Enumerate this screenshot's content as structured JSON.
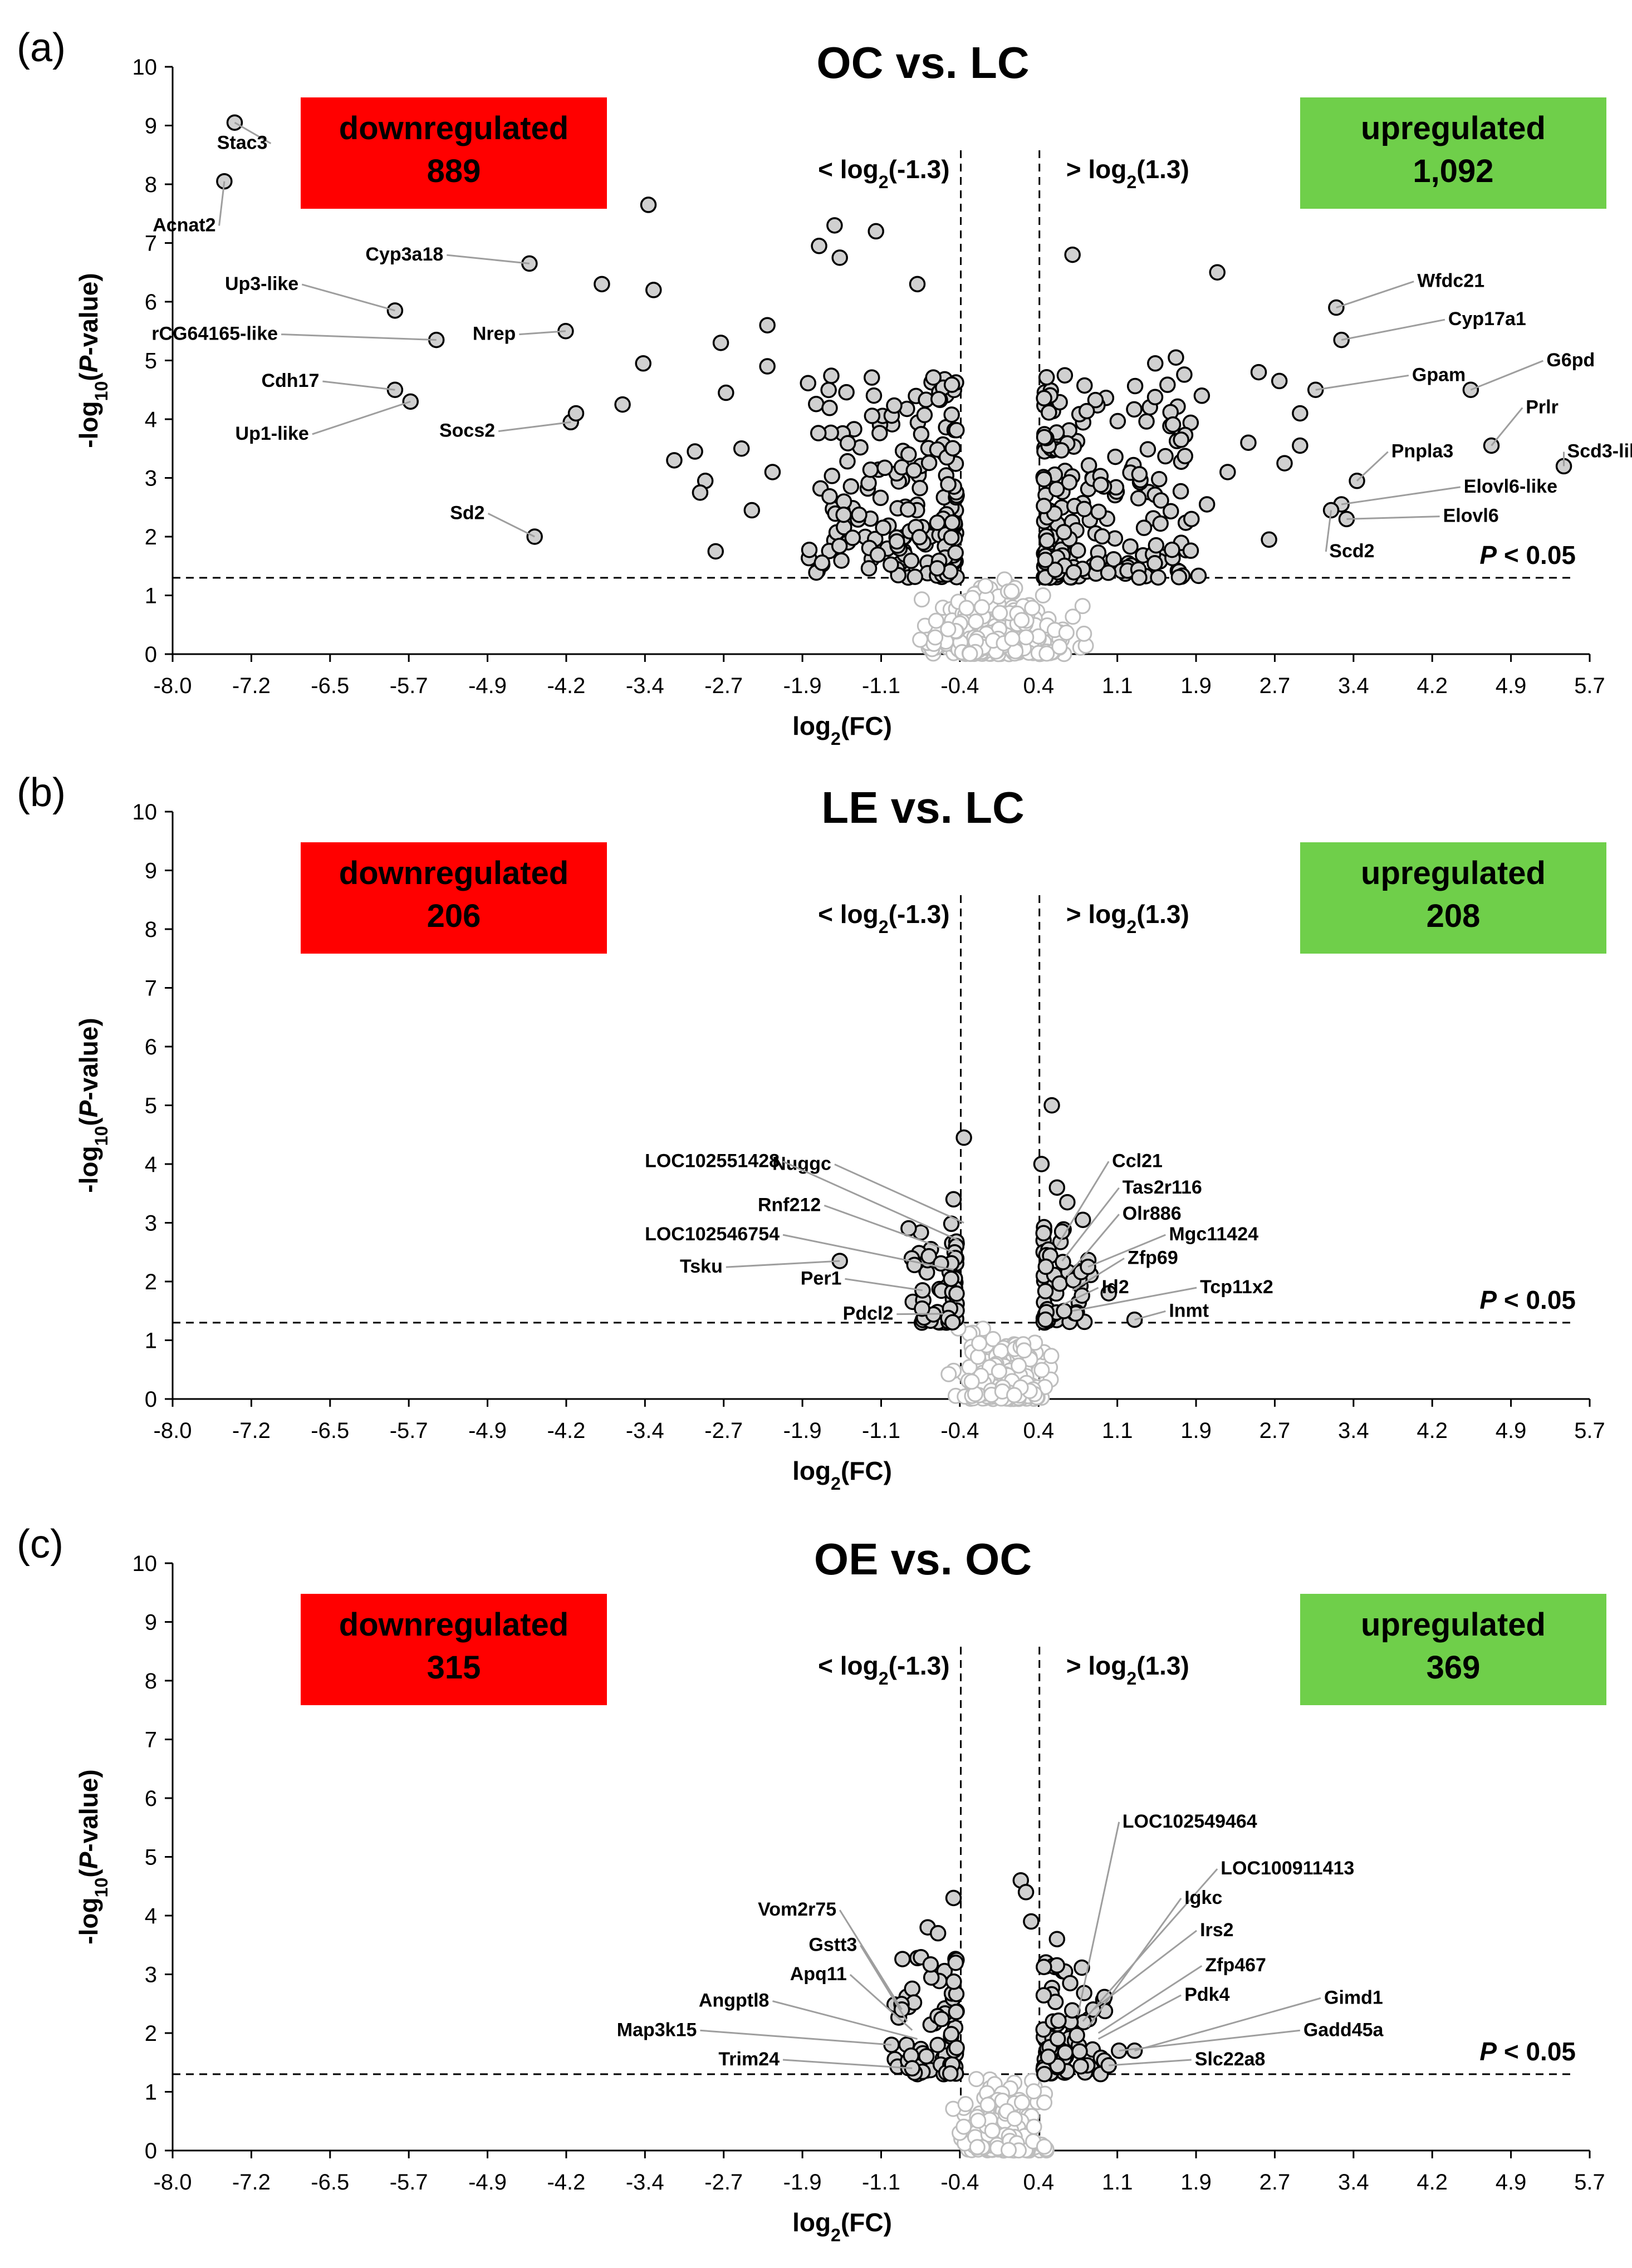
{
  "chart_data": [
    {
      "type": "scatter",
      "panel": "(a)",
      "title": "OC vs. LC",
      "xlabel": "log2(FC)",
      "ylabel": "-log10(P-value)",
      "xlim": [
        -8.0,
        5.7
      ],
      "ylim": [
        0,
        10
      ],
      "xticks": [
        "-8.0",
        "-7.2",
        "-6.5",
        "-5.7",
        "-4.9",
        "-4.2",
        "-3.4",
        "-2.7",
        "-1.9",
        "-1.1",
        "-0.4",
        "0.4",
        "1.1",
        "1.9",
        "2.7",
        "3.4",
        "4.2",
        "4.9",
        "5.7"
      ],
      "yticks": [
        "0",
        "1",
        "2",
        "3",
        "4",
        "5",
        "6",
        "7",
        "8",
        "9",
        "10"
      ],
      "fc_threshold": [
        -0.38,
        0.38
      ],
      "fc_left_label": "< log2(-1.3)",
      "fc_right_label": "> log2(1.3)",
      "p_threshold": 1.3,
      "p_label": "P < 0.05",
      "down": {
        "label": "downregulated",
        "count": "889",
        "color": "#ff0000"
      },
      "up": {
        "label": "upregulated",
        "count": "1,092",
        "color": "#6fcf4a"
      },
      "cluster": {
        "xspread": 1.5,
        "sig_ymax": 4.8,
        "nsig": 380,
        "nnonsig": 340,
        "seed": 11
      },
      "points": [
        {
          "x": -7.4,
          "y": 9.05
        },
        {
          "x": -7.5,
          "y": 8.05
        },
        {
          "x": -5.85,
          "y": 5.85
        },
        {
          "x": -5.45,
          "y": 5.35
        },
        {
          "x": -5.85,
          "y": 4.5
        },
        {
          "x": -5.7,
          "y": 4.3
        },
        {
          "x": -4.55,
          "y": 6.65
        },
        {
          "x": -4.2,
          "y": 5.5
        },
        {
          "x": -4.15,
          "y": 3.95
        },
        {
          "x": -4.5,
          "y": 2.0
        },
        {
          "x": -3.4,
          "y": 7.65
        },
        {
          "x": -3.35,
          "y": 6.2
        },
        {
          "x": -3.85,
          "y": 6.3
        },
        {
          "x": -3.45,
          "y": 4.95
        },
        {
          "x": -3.65,
          "y": 4.25
        },
        {
          "x": -4.1,
          "y": 4.1
        },
        {
          "x": -3.15,
          "y": 3.3
        },
        {
          "x": -2.95,
          "y": 3.45
        },
        {
          "x": -2.85,
          "y": 2.95
        },
        {
          "x": -2.5,
          "y": 3.5
        },
        {
          "x": -2.65,
          "y": 4.45
        },
        {
          "x": -2.7,
          "y": 5.3
        },
        {
          "x": -2.25,
          "y": 4.9
        },
        {
          "x": -2.25,
          "y": 5.6
        },
        {
          "x": -2.2,
          "y": 3.1
        },
        {
          "x": -2.9,
          "y": 2.75
        },
        {
          "x": -2.75,
          "y": 1.75
        },
        {
          "x": -2.4,
          "y": 2.45
        },
        {
          "x": -1.75,
          "y": 6.95
        },
        {
          "x": -1.6,
          "y": 7.3
        },
        {
          "x": -1.55,
          "y": 6.75
        },
        {
          "x": -1.2,
          "y": 7.2
        },
        {
          "x": -0.8,
          "y": 6.3
        },
        {
          "x": 0.7,
          "y": 6.8
        },
        {
          "x": 2.1,
          "y": 6.5
        },
        {
          "x": 3.25,
          "y": 5.9
        },
        {
          "x": 3.3,
          "y": 5.35
        },
        {
          "x": 4.55,
          "y": 4.5
        },
        {
          "x": 3.05,
          "y": 4.5
        },
        {
          "x": 4.75,
          "y": 3.55
        },
        {
          "x": 5.45,
          "y": 3.2
        },
        {
          "x": 3.45,
          "y": 2.95
        },
        {
          "x": 3.3,
          "y": 2.55
        },
        {
          "x": 3.2,
          "y": 2.45
        },
        {
          "x": 3.35,
          "y": 2.3
        },
        {
          "x": 2.5,
          "y": 4.8
        },
        {
          "x": 2.7,
          "y": 4.65
        },
        {
          "x": 2.9,
          "y": 4.1
        },
        {
          "x": 2.4,
          "y": 3.6
        },
        {
          "x": 2.75,
          "y": 3.25
        },
        {
          "x": 2.9,
          "y": 3.55
        },
        {
          "x": 1.75,
          "y": 3.65
        },
        {
          "x": 1.95,
          "y": 4.4
        },
        {
          "x": 2.2,
          "y": 3.1
        },
        {
          "x": 2.6,
          "y": 1.95
        },
        {
          "x": 2.0,
          "y": 2.55
        },
        {
          "x": 1.85,
          "y": 2.3
        },
        {
          "x": 1.7,
          "y": 5.05
        },
        {
          "x": 1.5,
          "y": 4.95
        }
      ],
      "labels": [
        {
          "text": "Stac3",
          "x": -7.05,
          "y": 8.6,
          "px": -7.4,
          "py": 9.05
        },
        {
          "text": "Acnat2",
          "x": -7.55,
          "y": 7.2,
          "px": -7.5,
          "py": 8.05
        },
        {
          "text": "Up3-like",
          "x": -6.75,
          "y": 6.2,
          "px": -5.85,
          "py": 5.85
        },
        {
          "text": "rCG64165-like",
          "x": -6.95,
          "y": 5.35,
          "px": -5.45,
          "py": 5.35
        },
        {
          "text": "Cdh17",
          "x": -6.55,
          "y": 4.55,
          "px": -5.85,
          "py": 4.5
        },
        {
          "text": "Up1-like",
          "x": -6.65,
          "y": 3.65,
          "px": -5.7,
          "py": 4.3
        },
        {
          "text": "Cyp3a18",
          "x": -5.35,
          "y": 6.7,
          "px": -4.55,
          "py": 6.65
        },
        {
          "text": "Nrep",
          "x": -4.65,
          "y": 5.35,
          "px": -4.2,
          "py": 5.5
        },
        {
          "text": "Socs2",
          "x": -4.85,
          "y": 3.7,
          "px": -4.15,
          "py": 3.95
        },
        {
          "text": "Sd2",
          "x": -4.95,
          "y": 2.3,
          "px": -4.5,
          "py": 2.0
        },
        {
          "text": "Wfdc21",
          "x": 4.0,
          "y": 6.25,
          "px": 3.25,
          "py": 5.9
        },
        {
          "text": "Cyp17a1",
          "x": 4.3,
          "y": 5.6,
          "px": 3.3,
          "py": 5.35
        },
        {
          "text": "G6pd",
          "x": 5.25,
          "y": 4.9,
          "px": 4.55,
          "py": 4.5
        },
        {
          "text": "Gpam",
          "x": 3.95,
          "y": 4.65,
          "px": 3.05,
          "py": 4.5
        },
        {
          "text": "Prlr",
          "x": 5.05,
          "y": 4.1,
          "px": 4.75,
          "py": 3.55
        },
        {
          "text": "Scd3-like",
          "x": 5.45,
          "y": 3.35,
          "px": 5.45,
          "py": 3.2
        },
        {
          "text": "Pnpla3",
          "x": 3.75,
          "y": 3.35,
          "px": 3.45,
          "py": 2.95
        },
        {
          "text": "Elovl6-like",
          "x": 4.45,
          "y": 2.75,
          "px": 3.3,
          "py": 2.55
        },
        {
          "text": "Elovl6",
          "x": 4.25,
          "y": 2.25,
          "px": 3.35,
          "py": 2.3
        },
        {
          "text": "Scd2",
          "x": 3.15,
          "y": 1.65,
          "px": 3.2,
          "py": 2.45
        }
      ]
    },
    {
      "type": "scatter",
      "panel": "(b)",
      "title": "LE vs. LC",
      "xlabel": "log2(FC)",
      "ylabel": "-log10(P-value)",
      "xlim": [
        -8.0,
        5.7
      ],
      "ylim": [
        0,
        10
      ],
      "xticks": [
        "-8.0",
        "-7.2",
        "-6.5",
        "-5.7",
        "-4.9",
        "-4.2",
        "-3.4",
        "-2.7",
        "-1.9",
        "-1.1",
        "-0.4",
        "0.4",
        "1.1",
        "1.9",
        "2.7",
        "3.4",
        "4.2",
        "4.9",
        "5.7"
      ],
      "yticks": [
        "0",
        "1",
        "2",
        "3",
        "4",
        "5",
        "6",
        "7",
        "8",
        "9",
        "10"
      ],
      "fc_threshold": [
        -0.38,
        0.38
      ],
      "fc_left_label": "< log2(-1.3)",
      "fc_right_label": "> log2(1.3)",
      "p_threshold": 1.3,
      "p_label": "P < 0.05",
      "down": {
        "label": "downregulated",
        "count": "206",
        "color": "#ff0000"
      },
      "up": {
        "label": "upregulated",
        "count": "208",
        "color": "#6fcf4a"
      },
      "cluster": {
        "xspread": 0.5,
        "sig_ymax": 3.0,
        "nsig": 110,
        "nnonsig": 260,
        "seed": 23
      },
      "points": [
        {
          "x": -0.35,
          "y": 4.45
        },
        {
          "x": -0.45,
          "y": 3.4
        },
        {
          "x": -1.55,
          "y": 2.35
        },
        {
          "x": -0.75,
          "y": 1.85
        },
        {
          "x": 0.5,
          "y": 5.0
        },
        {
          "x": 0.4,
          "y": 4.0
        },
        {
          "x": 0.55,
          "y": 3.6
        },
        {
          "x": 0.65,
          "y": 3.35
        },
        {
          "x": 0.8,
          "y": 3.05
        },
        {
          "x": 0.85,
          "y": 2.25
        },
        {
          "x": 0.6,
          "y": 2.85
        },
        {
          "x": 1.3,
          "y": 1.35
        },
        {
          "x": 1.05,
          "y": 1.8
        }
      ],
      "labels": [
        {
          "text": "Nuggc",
          "x": -1.6,
          "y": 3.9,
          "px": -0.35,
          "py": 3.0
        },
        {
          "text": "LOC102551428",
          "x": -2.1,
          "y": 3.95,
          "px": -0.4,
          "py": 2.7
        },
        {
          "text": "Rnf212",
          "x": -1.7,
          "y": 3.2,
          "px": -0.45,
          "py": 2.5
        },
        {
          "text": "LOC102546754",
          "x": -2.1,
          "y": 2.7,
          "px": -0.45,
          "py": 2.2
        },
        {
          "text": "Tsku",
          "x": -2.65,
          "y": 2.15,
          "px": -1.55,
          "py": 2.35
        },
        {
          "text": "Per1",
          "x": -1.5,
          "y": 1.95,
          "px": -0.75,
          "py": 1.85
        },
        {
          "text": "Pdcl2",
          "x": -1.0,
          "y": 1.35,
          "px": -0.55,
          "py": 1.45
        },
        {
          "text": "Ccl21",
          "x": 1.05,
          "y": 3.95,
          "px": 0.55,
          "py": 2.6
        },
        {
          "text": "Tas2r116",
          "x": 1.15,
          "y": 3.5,
          "px": 0.6,
          "py": 2.35
        },
        {
          "text": "Olr886",
          "x": 1.15,
          "y": 3.05,
          "px": 0.65,
          "py": 2.1
        },
        {
          "text": "Mgc11424",
          "x": 1.6,
          "y": 2.7,
          "px": 0.85,
          "py": 2.25
        },
        {
          "text": "Zfp69",
          "x": 1.2,
          "y": 2.3,
          "px": 0.7,
          "py": 1.85
        },
        {
          "text": "Id2",
          "x": 0.95,
          "y": 1.8,
          "px": 0.6,
          "py": 1.6
        },
        {
          "text": "Tcp11x2",
          "x": 1.9,
          "y": 1.8,
          "px": 0.7,
          "py": 1.5
        },
        {
          "text": "Inmt",
          "x": 1.6,
          "y": 1.4,
          "px": 1.3,
          "py": 1.35
        }
      ]
    },
    {
      "type": "scatter",
      "panel": "(c)",
      "title": "OE vs. OC",
      "xlabel": "log2(FC)",
      "ylabel": "-log10(P-value)",
      "xlim": [
        -8.0,
        5.7
      ],
      "ylim": [
        0,
        10
      ],
      "xticks": [
        "-8.0",
        "-7.2",
        "-6.5",
        "-5.7",
        "-4.9",
        "-4.2",
        "-3.4",
        "-2.7",
        "-1.9",
        "-1.1",
        "-0.4",
        "0.4",
        "1.1",
        "1.9",
        "2.7",
        "3.4",
        "4.2",
        "4.9",
        "5.7"
      ],
      "yticks": [
        "0",
        "1",
        "2",
        "3",
        "4",
        "5",
        "6",
        "7",
        "8",
        "9",
        "10"
      ],
      "fc_threshold": [
        -0.38,
        0.38
      ],
      "fc_left_label": "< log2(-1.3)",
      "fc_right_label": "> log2(1.3)",
      "p_threshold": 1.3,
      "p_label": "P < 0.05",
      "down": {
        "label": "downregulated",
        "count": "315",
        "color": "#ff0000"
      },
      "up": {
        "label": "upregulated",
        "count": "369",
        "color": "#6fcf4a"
      },
      "cluster": {
        "xspread": 0.6,
        "sig_ymax": 3.3,
        "nsig": 150,
        "nnonsig": 280,
        "seed": 37
      },
      "points": [
        {
          "x": -0.45,
          "y": 4.3
        },
        {
          "x": -0.7,
          "y": 3.8
        },
        {
          "x": -0.6,
          "y": 3.7
        },
        {
          "x": -0.95,
          "y": 2.4
        },
        {
          "x": -1.05,
          "y": 1.8
        },
        {
          "x": -0.85,
          "y": 1.4
        },
        {
          "x": 0.2,
          "y": 4.6
        },
        {
          "x": 0.25,
          "y": 4.4
        },
        {
          "x": 0.3,
          "y": 3.9
        },
        {
          "x": 0.55,
          "y": 3.6
        },
        {
          "x": 0.9,
          "y": 2.4
        },
        {
          "x": 1.15,
          "y": 1.7
        },
        {
          "x": 1.3,
          "y": 1.7
        },
        {
          "x": 1.05,
          "y": 1.45
        }
      ],
      "labels": [
        {
          "text": "Vom2r75",
          "x": -1.55,
          "y": 4.0,
          "px": -0.95,
          "py": 2.4
        },
        {
          "text": "Gstt3",
          "x": -1.35,
          "y": 3.4,
          "px": -0.9,
          "py": 2.2
        },
        {
          "text": "Apq11",
          "x": -1.45,
          "y": 2.9,
          "px": -0.85,
          "py": 2.05
        },
        {
          "text": "Angptl8",
          "x": -2.2,
          "y": 2.45,
          "px": -0.8,
          "py": 1.9
        },
        {
          "text": "Map3k15",
          "x": -2.9,
          "y": 1.95,
          "px": -1.05,
          "py": 1.8
        },
        {
          "text": "Trim24",
          "x": -2.1,
          "y": 1.45,
          "px": -0.85,
          "py": 1.4
        },
        {
          "text": "LOC102549464",
          "x": 1.15,
          "y": 5.5,
          "px": 0.75,
          "py": 2.3
        },
        {
          "text": "LOC100911413",
          "x": 2.1,
          "y": 4.7,
          "px": 0.8,
          "py": 2.2
        },
        {
          "text": "Igkc",
          "x": 1.75,
          "y": 4.2,
          "px": 0.85,
          "py": 2.1
        },
        {
          "text": "Irs2",
          "x": 1.9,
          "y": 3.65,
          "px": 0.9,
          "py": 2.4
        },
        {
          "text": "Zfp467",
          "x": 1.95,
          "y": 3.05,
          "px": 0.95,
          "py": 2.0
        },
        {
          "text": "Pdk4",
          "x": 1.75,
          "y": 2.55,
          "px": 0.95,
          "py": 1.9
        },
        {
          "text": "Gimd1",
          "x": 3.1,
          "y": 2.5,
          "px": 1.3,
          "py": 1.7
        },
        {
          "text": "Gadd45a",
          "x": 2.9,
          "y": 1.95,
          "px": 1.15,
          "py": 1.7
        },
        {
          "text": "Slc22a8",
          "x": 1.85,
          "y": 1.45,
          "px": 1.05,
          "py": 1.45
        }
      ]
    }
  ]
}
